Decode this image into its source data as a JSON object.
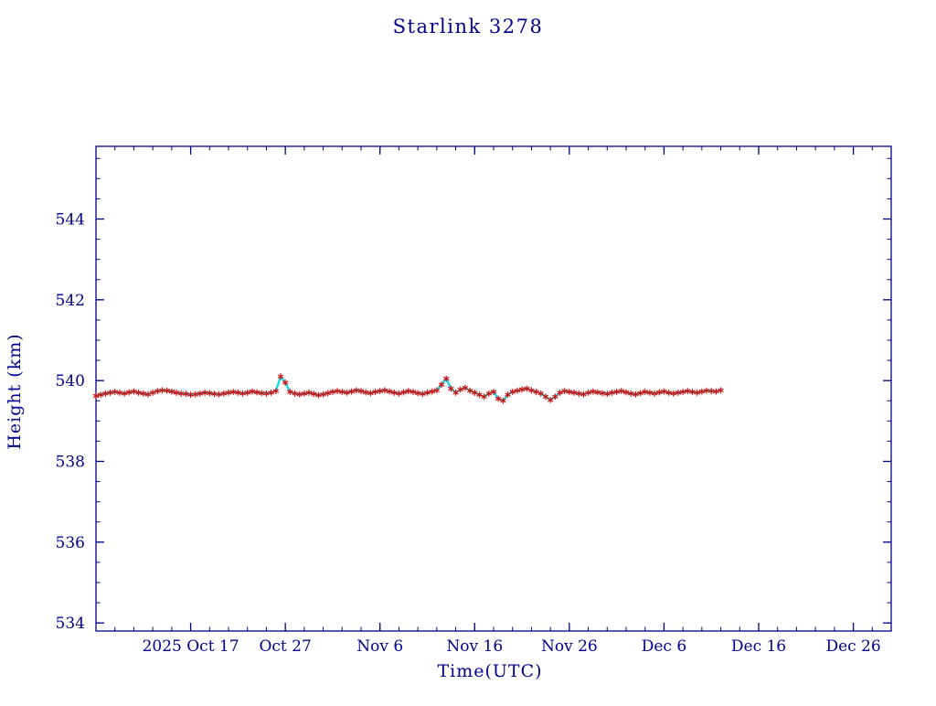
{
  "page": {
    "background": "#ffffff"
  },
  "chart_data": {
    "type": "scatter",
    "title": "Starlink 3278",
    "xlabel": "Time(UTC)",
    "ylabel": "Height (km)",
    "axis_color": "#00008b",
    "marker_color": "#cc1111",
    "line_color": "#00dde8",
    "xlim": [
      0,
      84
    ],
    "ylim": [
      533.8,
      545.8
    ],
    "x_minor_step": 2,
    "y_minor_step": 0.5,
    "x_major_ticks": [
      {
        "value": 10,
        "label": "2025 Oct 17"
      },
      {
        "value": 20,
        "label": "Oct 27"
      },
      {
        "value": 30,
        "label": "Nov 6"
      },
      {
        "value": 40,
        "label": "Nov 16"
      },
      {
        "value": 50,
        "label": "Nov 26"
      },
      {
        "value": 60,
        "label": "Dec 6"
      },
      {
        "value": 70,
        "label": "Dec 16"
      },
      {
        "value": 80,
        "label": "Dec 26"
      }
    ],
    "y_major_ticks": [
      {
        "value": 534,
        "label": "534"
      },
      {
        "value": 536,
        "label": "536"
      },
      {
        "value": 538,
        "label": "538"
      },
      {
        "value": 540,
        "label": "540"
      },
      {
        "value": 542,
        "label": "542"
      },
      {
        "value": 544,
        "label": "544"
      }
    ],
    "series": [
      {
        "name": "height",
        "x": [
          0,
          0.5,
          1,
          1.5,
          2,
          2.5,
          3,
          3.5,
          4,
          4.5,
          5,
          5.5,
          6,
          6.5,
          7,
          7.5,
          8,
          8.5,
          9,
          9.5,
          10,
          10.5,
          11,
          11.5,
          12,
          12.5,
          13,
          13.5,
          14,
          14.5,
          15,
          15.5,
          16,
          16.5,
          17,
          17.5,
          18,
          18.5,
          19,
          19.5,
          20,
          20.5,
          21,
          21.5,
          22,
          22.5,
          23,
          23.5,
          24,
          24.5,
          25,
          25.5,
          26,
          26.5,
          27,
          27.5,
          28,
          28.5,
          29,
          29.5,
          30,
          30.5,
          31,
          31.5,
          32,
          32.5,
          33,
          33.5,
          34,
          34.5,
          35,
          35.5,
          36,
          36.5,
          37,
          37.5,
          38,
          38.5,
          39,
          39.5,
          40,
          40.5,
          41,
          41.5,
          42,
          42.5,
          43,
          43.5,
          44,
          44.5,
          45,
          45.5,
          46,
          46.5,
          47,
          47.5,
          48,
          48.5,
          49,
          49.5,
          50,
          50.5,
          51,
          51.5,
          52,
          52.5,
          53,
          53.5,
          54,
          54.5,
          55,
          55.5,
          56,
          56.5,
          57,
          57.5,
          58,
          58.5,
          59,
          59.5,
          60,
          60.5,
          61,
          61.5,
          62,
          62.5,
          63,
          63.5,
          64,
          64.5,
          65,
          65.5,
          66
        ],
        "y": [
          539.62,
          539.65,
          539.68,
          539.7,
          539.72,
          539.7,
          539.68,
          539.71,
          539.73,
          539.7,
          539.68,
          539.66,
          539.7,
          539.74,
          539.76,
          539.75,
          539.73,
          539.7,
          539.68,
          539.67,
          539.65,
          539.66,
          539.68,
          539.7,
          539.69,
          539.67,
          539.66,
          539.68,
          539.7,
          539.72,
          539.7,
          539.68,
          539.7,
          539.73,
          539.71,
          539.69,
          539.68,
          539.7,
          539.74,
          540.1,
          539.95,
          539.72,
          539.68,
          539.66,
          539.68,
          539.7,
          539.67,
          539.64,
          539.66,
          539.69,
          539.72,
          539.74,
          539.72,
          539.7,
          539.73,
          539.76,
          539.74,
          539.71,
          539.69,
          539.72,
          539.74,
          539.76,
          539.73,
          539.7,
          539.68,
          539.71,
          539.74,
          539.72,
          539.69,
          539.67,
          539.7,
          539.73,
          539.76,
          539.9,
          540.05,
          539.8,
          539.7,
          539.78,
          539.82,
          539.75,
          539.7,
          539.65,
          539.6,
          539.68,
          539.72,
          539.55,
          539.5,
          539.65,
          539.72,
          539.75,
          539.78,
          539.8,
          539.76,
          539.72,
          539.68,
          539.6,
          539.52,
          539.6,
          539.7,
          539.74,
          539.72,
          539.7,
          539.68,
          539.66,
          539.7,
          539.73,
          539.71,
          539.69,
          539.67,
          539.7,
          539.72,
          539.74,
          539.71,
          539.68,
          539.66,
          539.69,
          539.72,
          539.7,
          539.68,
          539.71,
          539.73,
          539.7,
          539.68,
          539.7,
          539.72,
          539.74,
          539.72,
          539.7,
          539.73,
          539.75,
          539.74,
          539.73,
          539.76
        ]
      }
    ]
  }
}
